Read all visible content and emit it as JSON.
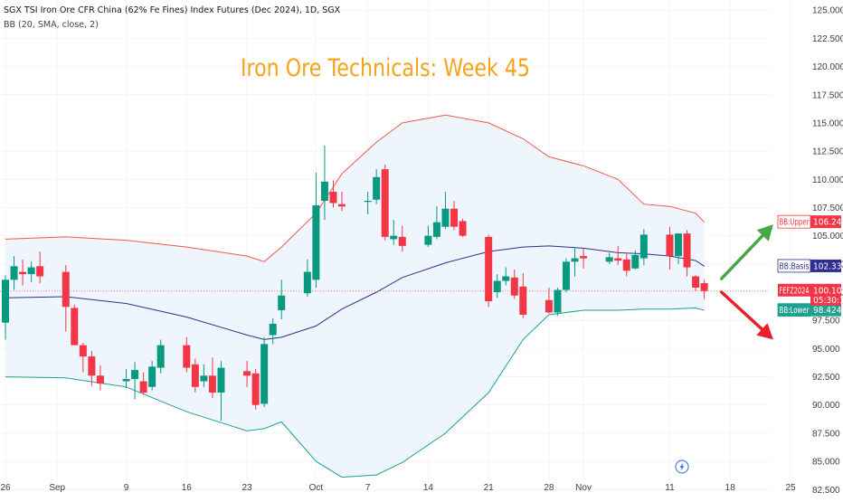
{
  "header": {
    "title": "SGX TSI Iron Ore CFR China (62% Fe Fines) Index Futures (Dec 2024), 1D, SGX",
    "indicator": "BB (20, SMA, close, 2)"
  },
  "caption": "Iron Ore Technicals: Week 45",
  "colors": {
    "up": "#089981",
    "down": "#f23645",
    "upper_band": "#f05a4a",
    "basis": "#2f2f8f",
    "lower_band": "#20a08e",
    "band_fill": "#eef5fc",
    "caption": "#f5a31a",
    "arrow_up": "#45a845",
    "arrow_down": "#e8202a"
  },
  "icons": {
    "bolt": "lightning-bolt-icon"
  },
  "tags": {
    "upper": {
      "label": "BB:Upper",
      "value": "106.241"
    },
    "basis": {
      "label": "BB:Basis",
      "value": "102.332"
    },
    "price": {
      "label": "FEFZ2024",
      "value": "100.100",
      "countdown": "05:30:12"
    },
    "lower": {
      "label": "BB:Lower",
      "value": "98.424"
    }
  },
  "chart_data": {
    "type": "candlestick",
    "y_axis": {
      "side": "right",
      "range": [
        81.8,
        125.9
      ],
      "ticks": [
        "125.000",
        "122.500",
        "120.000",
        "117.500",
        "115.000",
        "112.500",
        "110.000",
        "107.500",
        "105.000",
        "102.500",
        "100.000",
        "97.500",
        "95.000",
        "92.500",
        "90.000",
        "87.500",
        "85.000",
        "82.500"
      ]
    },
    "x_axis": {
      "range": [
        "2024-08-26",
        "2024-11-25"
      ],
      "ticks": [
        {
          "date": "2024-08-26",
          "label": "26"
        },
        {
          "date": "2024-09-01",
          "label": "Sep"
        },
        {
          "date": "2024-09-09",
          "label": "9"
        },
        {
          "date": "2024-09-16",
          "label": "16"
        },
        {
          "date": "2024-09-23",
          "label": "23"
        },
        {
          "date": "2024-10-01",
          "label": "Oct"
        },
        {
          "date": "2024-10-07",
          "label": "7"
        },
        {
          "date": "2024-10-14",
          "label": "14"
        },
        {
          "date": "2024-10-21",
          "label": "21"
        },
        {
          "date": "2024-10-28",
          "label": "28"
        },
        {
          "date": "2024-11-01",
          "label": "Nov"
        },
        {
          "date": "2024-11-11",
          "label": "11"
        },
        {
          "date": "2024-11-18",
          "label": "18"
        },
        {
          "date": "2024-11-25",
          "label": "25"
        }
      ]
    },
    "candles": [
      {
        "d": "2024-08-26",
        "o": 97.3,
        "h": 101.5,
        "l": 95.8,
        "c": 101.1
      },
      {
        "d": "2024-08-27",
        "o": 101.1,
        "h": 103.2,
        "l": 100.2,
        "c": 102.3
      },
      {
        "d": "2024-08-28",
        "o": 101.8,
        "h": 102.9,
        "l": 100.6,
        "c": 101.6
      },
      {
        "d": "2024-08-29",
        "o": 101.6,
        "h": 102.7,
        "l": 100.9,
        "c": 102.2
      },
      {
        "d": "2024-08-30",
        "o": 102.3,
        "h": 103.6,
        "l": 100.8,
        "c": 101.4
      },
      {
        "d": "2024-09-02",
        "o": 101.8,
        "h": 102.4,
        "l": 96.5,
        "c": 98.7
      },
      {
        "d": "2024-09-03",
        "o": 98.6,
        "h": 98.9,
        "l": 95.5,
        "c": 95.3
      },
      {
        "d": "2024-09-04",
        "o": 95.3,
        "h": 95.5,
        "l": 92.9,
        "c": 94.3
      },
      {
        "d": "2024-09-05",
        "o": 94.3,
        "h": 94.8,
        "l": 91.7,
        "c": 92.6
      },
      {
        "d": "2024-09-06",
        "o": 92.6,
        "h": 93.5,
        "l": 91.3,
        "c": 91.9
      },
      {
        "d": "2024-09-09",
        "o": 92.1,
        "h": 93.2,
        "l": 91.5,
        "c": 92.3
      },
      {
        "d": "2024-09-10",
        "o": 92.3,
        "h": 93.8,
        "l": 90.5,
        "c": 93.1
      },
      {
        "d": "2024-09-11",
        "o": 92.1,
        "h": 92.9,
        "l": 90.9,
        "c": 91.1
      },
      {
        "d": "2024-09-12",
        "o": 91.6,
        "h": 93.9,
        "l": 91.3,
        "c": 93.4
      },
      {
        "d": "2024-09-13",
        "o": 93.3,
        "h": 95.8,
        "l": 92.8,
        "c": 95.3
      },
      {
        "d": "2024-09-16",
        "o": 95.3,
        "h": 96.0,
        "l": 92.9,
        "c": 93.3
      },
      {
        "d": "2024-09-17",
        "o": 93.6,
        "h": 94.1,
        "l": 91.1,
        "c": 91.6
      },
      {
        "d": "2024-09-18",
        "o": 92.1,
        "h": 93.6,
        "l": 91.6,
        "c": 92.6
      },
      {
        "d": "2024-09-19",
        "o": 92.6,
        "h": 94.2,
        "l": 90.6,
        "c": 91.1
      },
      {
        "d": "2024-09-20",
        "o": 91.1,
        "h": 93.9,
        "l": 88.6,
        "c": 93.3
      },
      {
        "d": "2024-09-23",
        "o": 93.0,
        "h": 93.9,
        "l": 91.6,
        "c": 92.6
      },
      {
        "d": "2024-09-24",
        "o": 92.8,
        "h": 93.2,
        "l": 89.6,
        "c": 90.0
      },
      {
        "d": "2024-09-25",
        "o": 90.1,
        "h": 96.0,
        "l": 89.8,
        "c": 95.4
      },
      {
        "d": "2024-09-26",
        "o": 96.2,
        "h": 97.7,
        "l": 95.4,
        "c": 97.2
      },
      {
        "d": "2024-09-27",
        "o": 98.4,
        "h": 101.1,
        "l": 97.6,
        "c": 99.7
      },
      {
        "d": "2024-09-30",
        "o": 99.9,
        "h": 102.9,
        "l": 99.6,
        "c": 101.8
      },
      {
        "d": "2024-10-01",
        "o": 101.1,
        "h": 110.6,
        "l": 100.4,
        "c": 107.7
      },
      {
        "d": "2024-10-02",
        "o": 108.1,
        "h": 113.0,
        "l": 106.4,
        "c": 109.8
      },
      {
        "d": "2024-10-03",
        "o": 108.9,
        "h": 109.9,
        "l": 107.5,
        "c": 107.9
      },
      {
        "d": "2024-10-04",
        "o": 107.8,
        "h": 108.9,
        "l": 107.2,
        "c": 107.6
      },
      {
        "d": "2024-10-07",
        "o": 108.0,
        "h": 108.9,
        "l": 106.9,
        "c": 108.1
      },
      {
        "d": "2024-10-08",
        "o": 108.2,
        "h": 110.9,
        "l": 107.8,
        "c": 110.2
      },
      {
        "d": "2024-10-09",
        "o": 110.9,
        "h": 111.3,
        "l": 104.6,
        "c": 104.9
      },
      {
        "d": "2024-10-10",
        "o": 104.7,
        "h": 106.4,
        "l": 104.2,
        "c": 105.0
      },
      {
        "d": "2024-10-11",
        "o": 104.9,
        "h": 105.9,
        "l": 103.6,
        "c": 104.1
      },
      {
        "d": "2024-10-14",
        "o": 104.2,
        "h": 105.9,
        "l": 104.0,
        "c": 105.0
      },
      {
        "d": "2024-10-15",
        "o": 104.9,
        "h": 107.6,
        "l": 104.7,
        "c": 106.2
      },
      {
        "d": "2024-10-16",
        "o": 105.8,
        "h": 108.9,
        "l": 105.6,
        "c": 107.4
      },
      {
        "d": "2024-10-17",
        "o": 107.4,
        "h": 108.1,
        "l": 105.5,
        "c": 105.8
      },
      {
        "d": "2024-10-18",
        "o": 106.3,
        "h": 106.5,
        "l": 104.9,
        "c": 105.0
      },
      {
        "d": "2024-10-21",
        "o": 104.9,
        "h": 105.1,
        "l": 98.7,
        "c": 99.2
      },
      {
        "d": "2024-10-22",
        "o": 100.0,
        "h": 101.6,
        "l": 99.5,
        "c": 101.0
      },
      {
        "d": "2024-10-23",
        "o": 101.0,
        "h": 102.2,
        "l": 100.6,
        "c": 101.4
      },
      {
        "d": "2024-10-24",
        "o": 101.3,
        "h": 102.0,
        "l": 99.4,
        "c": 99.7
      },
      {
        "d": "2024-10-25",
        "o": 100.5,
        "h": 101.7,
        "l": 97.7,
        "c": 98.0
      },
      {
        "d": "2024-10-28",
        "o": 99.3,
        "h": 100.4,
        "l": 98.1,
        "c": 98.2
      },
      {
        "d": "2024-10-29",
        "o": 98.2,
        "h": 100.4,
        "l": 97.9,
        "c": 100.2
      },
      {
        "d": "2024-10-30",
        "o": 100.2,
        "h": 103.0,
        "l": 100.0,
        "c": 102.7
      },
      {
        "d": "2024-10-31",
        "o": 102.7,
        "h": 103.9,
        "l": 101.4,
        "c": 103.0
      },
      {
        "d": "2024-11-01",
        "o": 103.2,
        "h": 103.9,
        "l": 102.1,
        "c": 103.0
      },
      {
        "d": "2024-11-04",
        "o": 102.7,
        "h": 103.5,
        "l": 102.5,
        "c": 103.1
      },
      {
        "d": "2024-11-05",
        "o": 103.0,
        "h": 104.1,
        "l": 102.4,
        "c": 102.8
      },
      {
        "d": "2024-11-06",
        "o": 102.9,
        "h": 103.4,
        "l": 101.4,
        "c": 101.9
      },
      {
        "d": "2024-11-07",
        "o": 102.1,
        "h": 103.7,
        "l": 102.0,
        "c": 103.3
      },
      {
        "d": "2024-11-08",
        "o": 103.0,
        "h": 105.6,
        "l": 102.4,
        "c": 105.1
      },
      {
        "d": "2024-11-11",
        "o": 105.1,
        "h": 105.8,
        "l": 102.0,
        "c": 103.2
      },
      {
        "d": "2024-11-12",
        "o": 103.2,
        "h": 105.2,
        "l": 102.5,
        "c": 105.2
      },
      {
        "d": "2024-11-13",
        "o": 105.2,
        "h": 105.5,
        "l": 101.4,
        "c": 102.2
      },
      {
        "d": "2024-11-14",
        "o": 101.4,
        "h": 101.5,
        "l": 100.1,
        "c": 100.4
      },
      {
        "d": "2024-11-15",
        "o": 100.8,
        "h": 101.1,
        "l": 99.4,
        "c": 100.1
      }
    ],
    "bollinger": {
      "upper": [
        [
          "2024-08-26",
          104.7
        ],
        [
          "2024-09-02",
          104.9
        ],
        [
          "2024-09-09",
          104.6
        ],
        [
          "2024-09-16",
          104.0
        ],
        [
          "2024-09-23",
          103.2
        ],
        [
          "2024-09-25",
          102.7
        ],
        [
          "2024-09-27",
          104.0
        ],
        [
          "2024-10-01",
          107.0
        ],
        [
          "2024-10-04",
          110.5
        ],
        [
          "2024-10-08",
          113.3
        ],
        [
          "2024-10-11",
          115.0
        ],
        [
          "2024-10-16",
          115.7
        ],
        [
          "2024-10-21",
          115.0
        ],
        [
          "2024-10-25",
          113.6
        ],
        [
          "2024-10-28",
          112.0
        ],
        [
          "2024-11-01",
          111.2
        ],
        [
          "2024-11-05",
          110.0
        ],
        [
          "2024-11-08",
          107.8
        ],
        [
          "2024-11-11",
          107.6
        ],
        [
          "2024-11-14",
          107.0
        ],
        [
          "2024-11-15",
          106.2
        ]
      ],
      "basis": [
        [
          "2024-08-26",
          99.5
        ],
        [
          "2024-09-02",
          99.6
        ],
        [
          "2024-09-09",
          99.0
        ],
        [
          "2024-09-16",
          97.8
        ],
        [
          "2024-09-23",
          96.2
        ],
        [
          "2024-09-25",
          95.8
        ],
        [
          "2024-09-27",
          96.0
        ],
        [
          "2024-10-01",
          97.0
        ],
        [
          "2024-10-04",
          98.5
        ],
        [
          "2024-10-08",
          100.0
        ],
        [
          "2024-10-11",
          101.3
        ],
        [
          "2024-10-16",
          102.6
        ],
        [
          "2024-10-21",
          103.6
        ],
        [
          "2024-10-25",
          104.0
        ],
        [
          "2024-10-28",
          104.1
        ],
        [
          "2024-11-01",
          103.9
        ],
        [
          "2024-11-05",
          103.5
        ],
        [
          "2024-11-08",
          103.4
        ],
        [
          "2024-11-11",
          103.2
        ],
        [
          "2024-11-14",
          102.8
        ],
        [
          "2024-11-15",
          102.3
        ]
      ],
      "lower": [
        [
          "2024-08-26",
          92.5
        ],
        [
          "2024-09-02",
          92.4
        ],
        [
          "2024-09-09",
          91.6
        ],
        [
          "2024-09-16",
          89.4
        ],
        [
          "2024-09-23",
          87.7
        ],
        [
          "2024-09-25",
          87.9
        ],
        [
          "2024-09-27",
          88.5
        ],
        [
          "2024-10-01",
          85.0
        ],
        [
          "2024-10-04",
          83.6
        ],
        [
          "2024-10-08",
          83.8
        ],
        [
          "2024-10-11",
          84.9
        ],
        [
          "2024-10-16",
          87.5
        ],
        [
          "2024-10-21",
          91.1
        ],
        [
          "2024-10-25",
          95.8
        ],
        [
          "2024-10-28",
          98.0
        ],
        [
          "2024-11-01",
          98.4
        ],
        [
          "2024-11-05",
          98.4
        ],
        [
          "2024-11-08",
          98.5
        ],
        [
          "2024-11-11",
          98.5
        ],
        [
          "2024-11-14",
          98.6
        ],
        [
          "2024-11-15",
          98.4
        ]
      ]
    },
    "price_line": 100.1,
    "annotations": [
      {
        "type": "arrow",
        "direction": "up",
        "from": [
          "2024-11-17",
          101.2
        ],
        "to": [
          "2024-11-23",
          106.0
        ]
      },
      {
        "type": "arrow",
        "direction": "down",
        "from": [
          "2024-11-17",
          100.0
        ],
        "to": [
          "2024-11-23",
          95.8
        ]
      }
    ]
  }
}
